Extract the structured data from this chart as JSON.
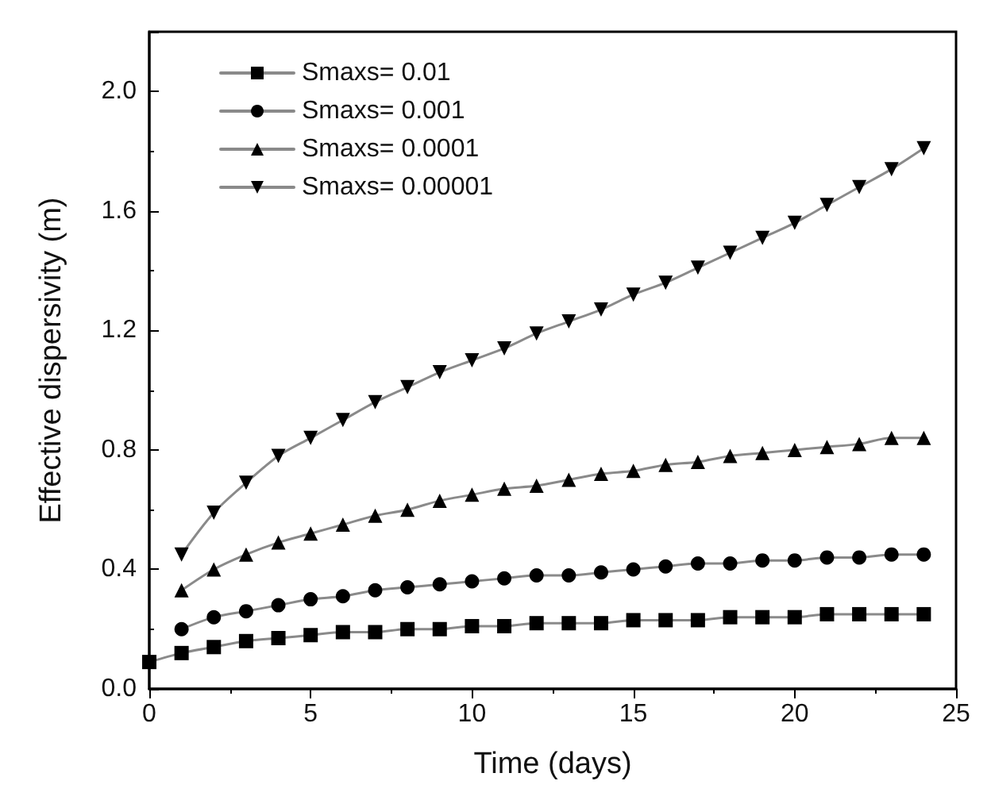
{
  "chart_data": {
    "type": "line",
    "xlabel": "Time (days)",
    "ylabel": "Effective dispersivity (m)",
    "x": [
      0,
      1,
      2,
      3,
      4,
      5,
      6,
      7,
      8,
      9,
      10,
      11,
      12,
      13,
      14,
      15,
      16,
      17,
      18,
      19,
      20,
      21,
      22,
      23,
      24
    ],
    "series": [
      {
        "name": "Smaxs= 0.01",
        "color": "#000000",
        "marker": "square",
        "values": [
          0.09,
          0.12,
          0.14,
          0.16,
          0.17,
          0.18,
          0.19,
          0.19,
          0.2,
          0.2,
          0.21,
          0.21,
          0.22,
          0.22,
          0.22,
          0.23,
          0.23,
          0.23,
          0.24,
          0.24,
          0.24,
          0.25,
          0.25,
          0.25,
          0.25
        ]
      },
      {
        "name": "Smaxs= 0.001",
        "color": "#000000",
        "marker": "circle",
        "x": [
          1,
          2,
          3,
          4,
          5,
          6,
          7,
          8,
          9,
          10,
          11,
          12,
          13,
          14,
          15,
          16,
          17,
          18,
          19,
          20,
          21,
          22,
          23,
          24
        ],
        "values": [
          0.2,
          0.24,
          0.26,
          0.28,
          0.3,
          0.31,
          0.33,
          0.34,
          0.35,
          0.36,
          0.37,
          0.38,
          0.38,
          0.39,
          0.4,
          0.41,
          0.42,
          0.42,
          0.43,
          0.43,
          0.44,
          0.44,
          0.45,
          0.45
        ]
      },
      {
        "name": "Smaxs= 0.0001",
        "color": "#000000",
        "marker": "triangle",
        "x": [
          1,
          2,
          3,
          4,
          5,
          6,
          7,
          8,
          9,
          10,
          11,
          12,
          13,
          14,
          15,
          16,
          17,
          18,
          19,
          20,
          21,
          22,
          23,
          24
        ],
        "values": [
          0.33,
          0.4,
          0.45,
          0.49,
          0.52,
          0.55,
          0.58,
          0.6,
          0.63,
          0.65,
          0.67,
          0.68,
          0.7,
          0.72,
          0.73,
          0.75,
          0.76,
          0.78,
          0.79,
          0.8,
          0.81,
          0.82,
          0.84,
          0.84
        ]
      },
      {
        "name": "Smaxs= 0.00001",
        "color": "#000000",
        "marker": "triangle-down",
        "x": [
          1,
          2,
          3,
          4,
          5,
          6,
          7,
          8,
          9,
          10,
          11,
          12,
          13,
          14,
          15,
          16,
          17,
          18,
          19,
          20,
          21,
          22,
          23,
          24
        ],
        "values": [
          0.45,
          0.59,
          0.69,
          0.78,
          0.84,
          0.9,
          0.96,
          1.01,
          1.06,
          1.1,
          1.14,
          1.19,
          1.23,
          1.27,
          1.32,
          1.36,
          1.41,
          1.46,
          1.51,
          1.56,
          1.62,
          1.68,
          1.74,
          1.81
        ]
      }
    ],
    "xlim": [
      0,
      25
    ],
    "xticks": [
      0,
      5,
      10,
      15,
      20,
      25
    ],
    "ylim": [
      0,
      2.2
    ],
    "yticks": [
      {
        "value": 0,
        "label": "0.0"
      },
      {
        "value": 0.4,
        "label": "0.4"
      },
      {
        "value": 0.8,
        "label": "0.8"
      },
      {
        "value": 1.2,
        "label": "1.2"
      },
      {
        "value": 1.6,
        "label": "1.6"
      },
      {
        "value": 2,
        "label": "2.0"
      }
    ],
    "grid": false,
    "legend": "top left",
    "line_style": "solid"
  }
}
